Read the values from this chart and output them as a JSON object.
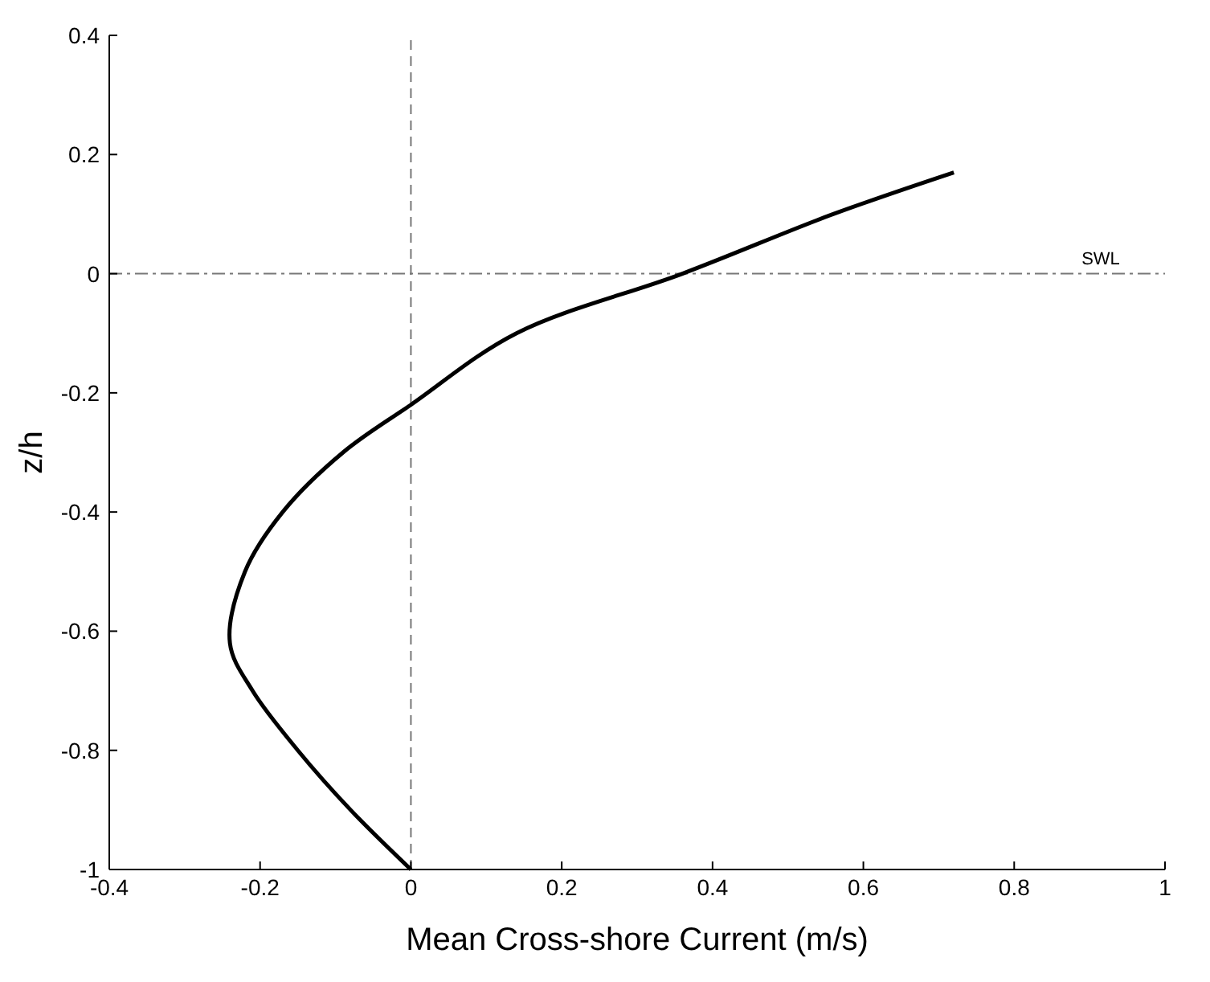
{
  "chart_data": {
    "type": "line",
    "xlabel": "Mean Cross-shore Current (m/s)",
    "ylabel": "z/h",
    "xlim": [
      -0.4,
      1
    ],
    "ylim": [
      -1,
      0.4
    ],
    "xticks": [
      -0.4,
      -0.2,
      0,
      0.2,
      0.4,
      0.6,
      0.8,
      1
    ],
    "yticks": [
      -1,
      -0.8,
      -0.6,
      -0.4,
      -0.2,
      0,
      0.2,
      0.4
    ],
    "series": [
      {
        "color": "#000000",
        "x": [
          0,
          -0.08,
          -0.15,
          -0.21,
          -0.24,
          -0.22,
          -0.17,
          -0.09,
          0,
          0.14,
          0.36,
          0.56,
          0.72
        ],
        "values": [
          -1,
          -0.9,
          -0.8,
          -0.7,
          -0.62,
          -0.5,
          -0.4,
          -0.3,
          -0.22,
          -0.1,
          0,
          0.1,
          0.17
        ]
      }
    ],
    "ref_lines": [
      {
        "axis": "x",
        "value": 0,
        "line_style": "dashed",
        "color": "#777777"
      },
      {
        "axis": "y",
        "value": 0,
        "label": "SWL",
        "line_style": "dashed",
        "color": "#777777"
      }
    ],
    "grid": false,
    "marker": "none",
    "line_style": "solid"
  }
}
